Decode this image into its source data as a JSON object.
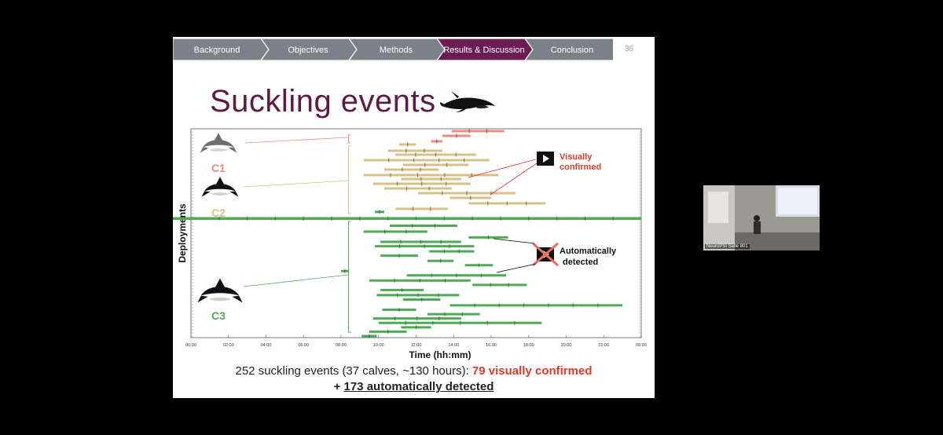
{
  "nav": {
    "items": [
      "Background",
      "Objectives",
      "Methods",
      "Results & Discussion",
      "Conclusion"
    ],
    "active_index": 3,
    "slide_number": "36",
    "colors": {
      "inactive": "#7b8188",
      "active": "#6b1c52"
    }
  },
  "title": "Suckling events",
  "title_icon": "whale-icon",
  "chart_labels": {
    "c1": "C1",
    "c2": "C2",
    "c3": "C3",
    "ylabel": "Deployments",
    "xlabel": "Time (hh:mm)",
    "callout_visual_line1": "Visually",
    "callout_visual_line2": "confirmed",
    "callout_auto_line1": "Automatically",
    "callout_auto_line2": "detected"
  },
  "chart_data": {
    "type": "timeline",
    "xlabel": "Time (hh:mm)",
    "ylabel": "Deployments",
    "xlim": [
      0,
      24
    ],
    "x_ticks": [
      "00:00",
      "02:00",
      "04:00",
      "06:00",
      "08:00",
      "10:00",
      "12:00",
      "14:00",
      "16:00",
      "18:00",
      "20:00",
      "22:00",
      "00:00"
    ],
    "groups": [
      {
        "name": "C1",
        "color": "#ef8a80",
        "rows": [
          [
            13.9,
            16.7
          ],
          [
            13.4,
            14.9
          ],
          [
            12.8,
            13.4
          ]
        ]
      },
      {
        "name": "C2",
        "color": "#d9c089",
        "rows": [
          [
            11.1,
            12.0
          ],
          [
            10.5,
            13.4
          ],
          [
            10.9,
            15.2
          ],
          [
            9.2,
            15.9
          ],
          [
            11.3,
            14.8
          ],
          [
            10.3,
            13.2
          ],
          [
            9.2,
            16.4
          ],
          [
            11.2,
            14.4
          ],
          [
            9.7,
            14.9
          ],
          [
            10.3,
            13.9
          ],
          [
            12.1,
            17.3
          ],
          [
            13.8,
            16.0
          ],
          [
            14.8,
            18.9
          ],
          [
            10.9,
            13.7
          ]
        ]
      },
      {
        "name": "C3",
        "color": "#4faa55",
        "rows": [
          [
            9.8,
            10.3
          ],
          [
            0,
            24
          ],
          [
            10.6,
            14.2
          ],
          [
            9.2,
            12.6
          ],
          [
            14.8,
            16.9
          ],
          [
            10.1,
            14.4
          ],
          [
            9.8,
            15.1
          ],
          [
            12.7,
            15.1
          ],
          [
            10.1,
            12.1
          ],
          [
            12.6,
            14.0
          ],
          [
            14.6,
            16.1
          ],
          [
            8.0,
            8.4
          ],
          [
            11.5,
            16.8
          ],
          [
            9.5,
            14.9
          ],
          [
            15.0,
            17.9
          ],
          [
            10.1,
            12.4
          ],
          [
            9.9,
            14.3
          ],
          [
            11.3,
            13.3
          ],
          [
            13.8,
            23.0
          ],
          [
            10.2,
            12.0
          ],
          [
            12.6,
            15.4
          ],
          [
            9.7,
            14.4
          ],
          [
            10.0,
            18.7
          ],
          [
            11.2,
            12.8
          ],
          [
            9.5,
            11.5
          ],
          [
            9.1,
            9.9
          ]
        ]
      }
    ],
    "total_events": 252,
    "calves": 37,
    "hours": 130,
    "visually_confirmed": 79,
    "automatically_detected": 173
  },
  "summary": {
    "line1_text": "252 suckling events (37 calves, ~130 hours): ",
    "line1_highlight": "79 visually confirmed",
    "line2_prefix": "+ ",
    "line2_underlined": "173 automatically detected"
  },
  "camera": {
    "label": "NeuroPSI Salle 801"
  }
}
